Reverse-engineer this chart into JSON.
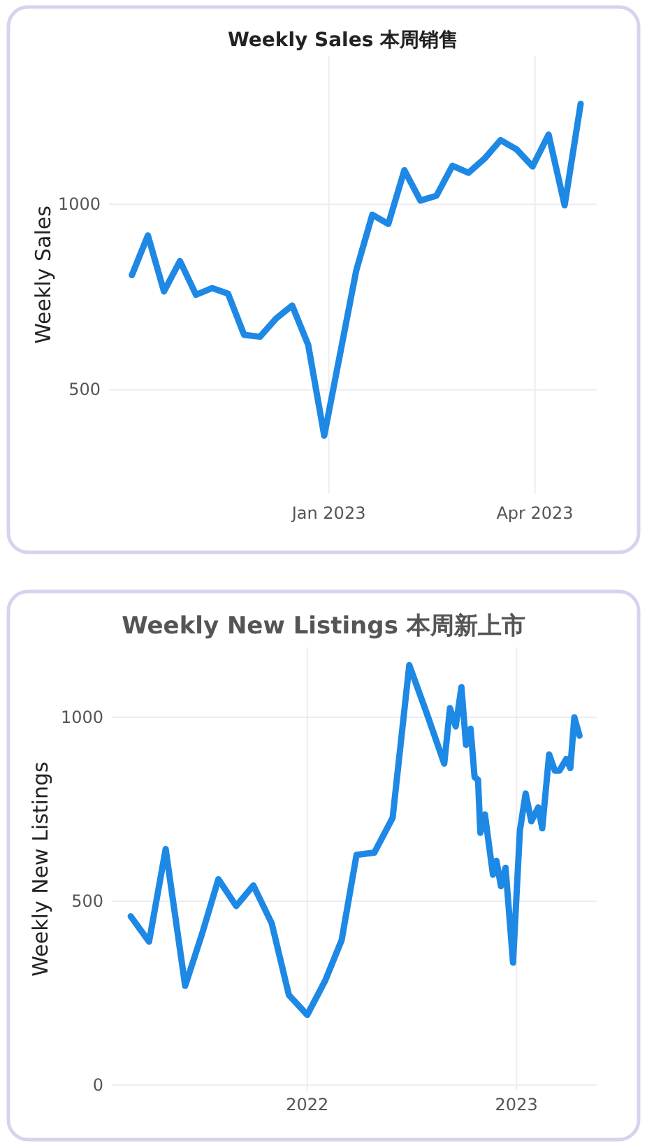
{
  "chart_data": [
    {
      "type": "line",
      "title": "Weekly Sales 本周销售",
      "ylabel": "Weekly Sales",
      "color": "#1e88e5",
      "grid": true,
      "x": [
        "2022-10-07",
        "2022-10-14",
        "2022-10-21",
        "2022-10-28",
        "2022-11-04",
        "2022-11-11",
        "2022-11-18",
        "2022-11-25",
        "2022-12-02",
        "2022-12-09",
        "2022-12-16",
        "2022-12-23",
        "2022-12-30",
        "2023-01-13",
        "2023-01-20",
        "2023-01-27",
        "2023-02-03",
        "2023-02-10",
        "2023-02-17",
        "2023-02-24",
        "2023-03-03",
        "2023-03-10",
        "2023-03-17",
        "2023-03-24",
        "2023-03-31",
        "2023-04-07",
        "2023-04-14",
        "2023-04-21"
      ],
      "values": [
        809,
        916,
        765,
        847,
        756,
        774,
        759,
        648,
        643,
        692,
        727,
        621,
        376,
        822,
        972,
        947,
        1092,
        1010,
        1023,
        1104,
        1085,
        1123,
        1173,
        1148,
        1102,
        1188,
        997,
        1271
      ],
      "xlim": [
        "2022-09-27",
        "2023-04-28"
      ],
      "ylim": [
        220,
        1400
      ],
      "xticks": [
        {
          "value": "2023-01-01",
          "label": "Jan 2023"
        },
        {
          "value": "2023-04-01",
          "label": "Apr 2023"
        }
      ],
      "yticks": [
        500,
        1000
      ]
    },
    {
      "type": "line",
      "title": "Weekly New Listings  本周新上市",
      "ylabel": "Weekly New Listings",
      "color": "#1e88e5",
      "grid": true,
      "x": [
        "2021-02-27",
        "2021-03-31",
        "2021-04-29",
        "2021-06-02",
        "2021-07-01",
        "2021-07-30",
        "2021-08-30",
        "2021-09-29",
        "2021-10-31",
        "2021-11-30",
        "2022-01-01",
        "2022-02-01",
        "2022-03-02",
        "2022-03-28",
        "2022-04-28",
        "2022-05-30",
        "2022-06-28",
        "2022-07-28",
        "2022-08-28",
        "2022-09-07",
        "2022-09-17",
        "2022-09-27",
        "2022-10-05",
        "2022-10-13",
        "2022-10-20",
        "2022-10-26",
        "2022-10-30",
        "2022-11-07",
        "2022-11-21",
        "2022-11-27",
        "2022-12-05",
        "2022-12-13",
        "2022-12-26",
        "2023-01-07",
        "2023-01-17",
        "2023-01-27",
        "2023-02-08",
        "2023-02-15",
        "2023-02-27",
        "2023-03-09",
        "2023-03-17",
        "2023-03-29",
        "2023-04-05",
        "2023-04-12",
        "2023-04-21"
      ],
      "values": [
        459,
        390,
        642,
        270,
        409,
        560,
        487,
        543,
        440,
        245,
        191,
        283,
        394,
        626,
        632,
        727,
        1142,
        1013,
        874,
        1025,
        975,
        1082,
        925,
        969,
        837,
        830,
        686,
        736,
        572,
        610,
        541,
        591,
        333,
        692,
        793,
        717,
        755,
        698,
        899,
        855,
        855,
        887,
        862,
        1000,
        950
      ],
      "xlim": [
        "2021-01-25",
        "2023-05-21"
      ],
      "ylim": [
        -15,
        1190
      ],
      "xticks": [
        {
          "value": "2022-01-01",
          "label": "2022"
        },
        {
          "value": "2023-01-01",
          "label": "2023"
        }
      ],
      "yticks": [
        0,
        500,
        1000
      ]
    }
  ]
}
